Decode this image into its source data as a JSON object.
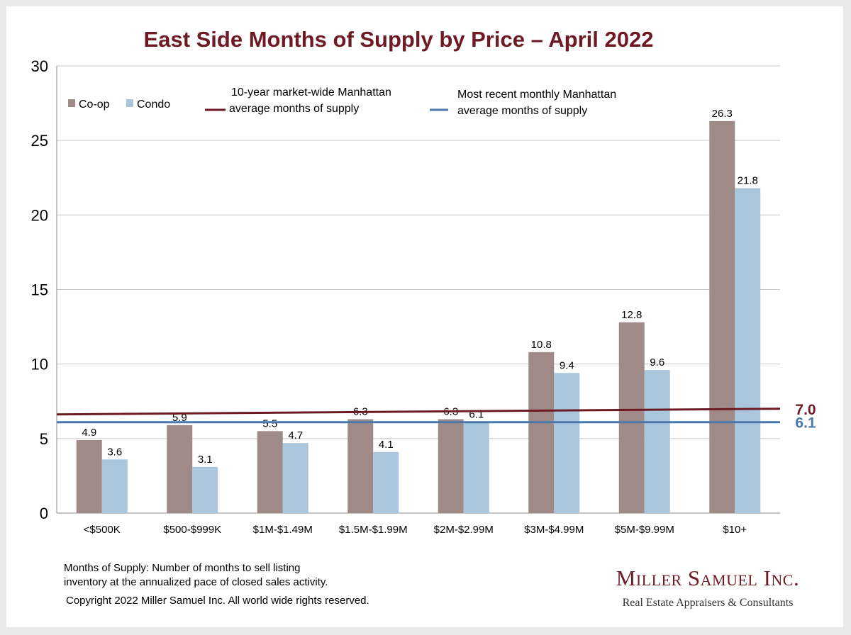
{
  "chart_data": {
    "type": "bar",
    "title": "East Side Months of Supply by Price – April 2022",
    "categories": [
      "<$500K",
      "$500-$999K",
      "$1M-$1.49M",
      "$1.5M-$1.99M",
      "$2M-$2.99M",
      "$3M-$4.99M",
      "$5M-$9.99M",
      "$10+"
    ],
    "series": [
      {
        "name": "Co-op",
        "color": "#a08a88",
        "values": [
          4.9,
          5.9,
          5.5,
          6.3,
          6.3,
          10.8,
          12.8,
          26.3
        ]
      },
      {
        "name": "Condo",
        "color": "#a9c6dc",
        "values": [
          3.6,
          3.1,
          4.7,
          4.1,
          6.1,
          9.4,
          9.6,
          21.8
        ]
      }
    ],
    "ylim": [
      0,
      30
    ],
    "yticks": [
      0,
      5,
      10,
      15,
      20,
      25,
      30
    ],
    "grid": true,
    "legend_position": "top-left",
    "reference_lines": [
      {
        "label_line1": "10-year  market-wide Manhattan",
        "label_line2": "average months of supply",
        "value": 7.0,
        "value_label": "7.0",
        "color": "#6e1a24"
      },
      {
        "label_line1": "Most recent monthly Manhattan",
        "label_line2": "average months of supply",
        "value": 6.1,
        "value_label": "6.1",
        "color": "#4a78aa"
      }
    ]
  },
  "footer": {
    "note_line1": "Months of Supply: Number of months to sell listing",
    "note_line2": "inventory at the annualized pace of closed sales activity.",
    "copyright": "Copyright 2022 Miller Samuel Inc.  All world wide rights reserved.",
    "brand_name": "Miller Samuel Inc.",
    "brand_tagline": "Real Estate Appraisers & Consultants"
  }
}
